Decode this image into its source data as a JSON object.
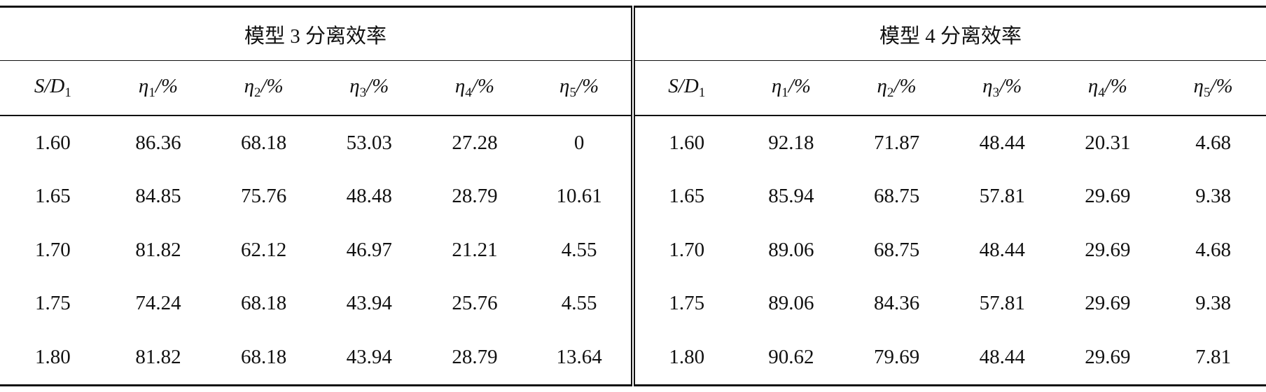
{
  "table": {
    "groups": [
      {
        "title": "模型 3 分离效率",
        "columns": [
          {
            "base": "S/D",
            "sub": "1"
          },
          {
            "base": "η",
            "sub": "1",
            "suffix": "/%"
          },
          {
            "base": "η",
            "sub": "2",
            "suffix": "/%"
          },
          {
            "base": "η",
            "sub": "3",
            "suffix": "/%"
          },
          {
            "base": "η",
            "sub": "4",
            "suffix": "/%"
          },
          {
            "base": "η",
            "sub": "5",
            "suffix": "/%"
          }
        ],
        "rows": [
          [
            "1.60",
            "86.36",
            "68.18",
            "53.03",
            "27.28",
            "0"
          ],
          [
            "1.65",
            "84.85",
            "75.76",
            "48.48",
            "28.79",
            "10.61"
          ],
          [
            "1.70",
            "81.82",
            "62.12",
            "46.97",
            "21.21",
            "4.55"
          ],
          [
            "1.75",
            "74.24",
            "68.18",
            "43.94",
            "25.76",
            "4.55"
          ],
          [
            "1.80",
            "81.82",
            "68.18",
            "43.94",
            "28.79",
            "13.64"
          ]
        ]
      },
      {
        "title": "模型 4 分离效率",
        "columns": [
          {
            "base": "S/D",
            "sub": "1"
          },
          {
            "base": "η",
            "sub": "1",
            "suffix": "/%"
          },
          {
            "base": "η",
            "sub": "2",
            "suffix": "/%"
          },
          {
            "base": "η",
            "sub": "3",
            "suffix": "/%"
          },
          {
            "base": "η",
            "sub": "4",
            "suffix": "/%"
          },
          {
            "base": "η",
            "sub": "5",
            "suffix": "/%"
          }
        ],
        "rows": [
          [
            "1.60",
            "92.18",
            "71.87",
            "48.44",
            "20.31",
            "4.68"
          ],
          [
            "1.65",
            "85.94",
            "68.75",
            "57.81",
            "29.69",
            "9.38"
          ],
          [
            "1.70",
            "89.06",
            "68.75",
            "48.44",
            "29.69",
            "4.68"
          ],
          [
            "1.75",
            "89.06",
            "84.36",
            "57.81",
            "29.69",
            "9.38"
          ],
          [
            "1.80",
            "90.62",
            "79.69",
            "48.44",
            "29.69",
            "7.81"
          ]
        ]
      }
    ]
  }
}
